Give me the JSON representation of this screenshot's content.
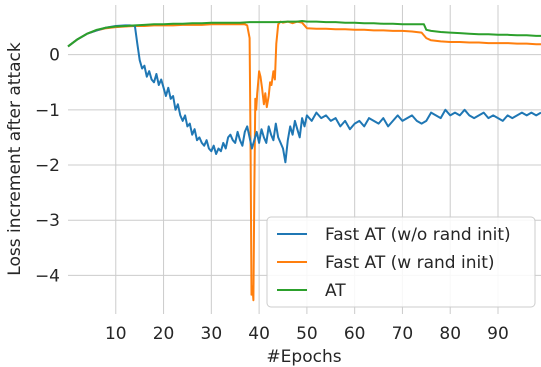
{
  "chart_data": {
    "type": "line",
    "xlabel": "#Epochs",
    "ylabel": "Loss increment after attack",
    "xlim": [
      0,
      99
    ],
    "ylim": [
      -4.7,
      0.9
    ],
    "xticks": [
      10,
      20,
      30,
      40,
      50,
      60,
      70,
      80,
      90
    ],
    "yticks": [
      0,
      -1,
      -2,
      -3,
      -4
    ],
    "grid": true,
    "legend_position": "bottom-right",
    "series": [
      {
        "name": "Fast AT (w/o rand init)",
        "color": "#1f77b4",
        "x": [
          0,
          2,
          4,
          6,
          8,
          10,
          12,
          13,
          14,
          14.5,
          15,
          15.5,
          16,
          16.5,
          17,
          17.5,
          18,
          18.5,
          19,
          19.5,
          20,
          20.5,
          21,
          21.5,
          22,
          22.5,
          23,
          23.5,
          24,
          24.5,
          25,
          25.5,
          26,
          26.5,
          27,
          27.5,
          28,
          28.5,
          29,
          29.5,
          30,
          30.5,
          31,
          31.5,
          32,
          32.5,
          33,
          33.5,
          34,
          34.5,
          35,
          35.5,
          36,
          36.5,
          37,
          37.5,
          38,
          38.5,
          39,
          39.5,
          40,
          40.5,
          41,
          41.5,
          42,
          42.5,
          43,
          43.5,
          44,
          44.5,
          45,
          45.5,
          46,
          46.5,
          47,
          47.5,
          48,
          48.5,
          49,
          49.5,
          50,
          51,
          52,
          53,
          54,
          55,
          56,
          57,
          58,
          59,
          60,
          61,
          62,
          63,
          64,
          65,
          66,
          67,
          68,
          69,
          70,
          71,
          72,
          73,
          74,
          75,
          76,
          77,
          78,
          79,
          80,
          81,
          82,
          83,
          84,
          85,
          86,
          87,
          88,
          89,
          90,
          91,
          92,
          93,
          94,
          95,
          96,
          97,
          98,
          99
        ],
        "values": [
          0.15,
          0.28,
          0.38,
          0.44,
          0.49,
          0.52,
          0.53,
          0.53,
          0.52,
          0.2,
          -0.1,
          -0.25,
          -0.2,
          -0.4,
          -0.3,
          -0.45,
          -0.5,
          -0.35,
          -0.55,
          -0.45,
          -0.6,
          -0.75,
          -0.6,
          -0.8,
          -0.75,
          -1.0,
          -0.9,
          -1.1,
          -1.2,
          -1.1,
          -1.3,
          -1.25,
          -1.45,
          -1.35,
          -1.55,
          -1.5,
          -1.6,
          -1.65,
          -1.55,
          -1.7,
          -1.75,
          -1.65,
          -1.8,
          -1.7,
          -1.75,
          -1.6,
          -1.7,
          -1.5,
          -1.45,
          -1.55,
          -1.6,
          -1.4,
          -1.55,
          -1.65,
          -1.4,
          -1.3,
          -1.5,
          -1.7,
          -1.55,
          -1.4,
          -1.6,
          -1.35,
          -1.5,
          -1.6,
          -1.3,
          -1.45,
          -1.55,
          -1.25,
          -1.5,
          -1.6,
          -1.7,
          -1.95,
          -1.55,
          -1.3,
          -1.45,
          -1.2,
          -1.35,
          -1.5,
          -1.15,
          -1.3,
          -1.1,
          -1.2,
          -1.05,
          -1.15,
          -1.1,
          -1.2,
          -1.15,
          -1.3,
          -1.2,
          -1.35,
          -1.25,
          -1.2,
          -1.3,
          -1.15,
          -1.2,
          -1.25,
          -1.15,
          -1.3,
          -1.2,
          -1.1,
          -1.2,
          -1.15,
          -1.1,
          -1.2,
          -1.25,
          -1.2,
          -1.05,
          -1.1,
          -1.15,
          -1.0,
          -1.1,
          -1.05,
          -1.1,
          -1.0,
          -1.1,
          -1.15,
          -1.1,
          -1.05,
          -1.15,
          -1.1,
          -1.15,
          -1.2,
          -1.1,
          -1.15,
          -1.1,
          -1.05,
          -1.1,
          -1.05,
          -1.1,
          -1.05
        ]
      },
      {
        "name": "Fast AT (w rand init)",
        "color": "#ff7f0e",
        "x": [
          0,
          2,
          4,
          6,
          8,
          10,
          12,
          14,
          16,
          18,
          20,
          22,
          24,
          26,
          28,
          30,
          32,
          34,
          36,
          37,
          37.5,
          38,
          38.2,
          38.4,
          38.6,
          38.8,
          39,
          39.2,
          39.4,
          39.6,
          39.8,
          40,
          40.3,
          40.6,
          41,
          41.3,
          41.6,
          42,
          42.3,
          42.6,
          43,
          43.3,
          43.6,
          44,
          44.5,
          45,
          46,
          47,
          48,
          49,
          50,
          52,
          54,
          56,
          58,
          60,
          62,
          64,
          66,
          68,
          70,
          72,
          74,
          75,
          76,
          78,
          80,
          82,
          84,
          86,
          88,
          90,
          92,
          94,
          96,
          98,
          99
        ],
        "values": [
          0.15,
          0.28,
          0.38,
          0.44,
          0.48,
          0.5,
          0.51,
          0.52,
          0.52,
          0.53,
          0.53,
          0.53,
          0.54,
          0.54,
          0.54,
          0.55,
          0.55,
          0.55,
          0.55,
          0.55,
          0.53,
          0.3,
          -1.5,
          -4.35,
          -4.2,
          -4.45,
          -2.5,
          -0.8,
          -1.0,
          -0.7,
          -0.5,
          -0.3,
          -0.4,
          -0.6,
          -0.9,
          -0.7,
          -0.95,
          -0.75,
          -0.5,
          -0.55,
          -0.3,
          -0.45,
          0.2,
          0.55,
          0.6,
          0.58,
          0.6,
          0.57,
          0.6,
          0.58,
          0.48,
          0.47,
          0.47,
          0.46,
          0.46,
          0.45,
          0.45,
          0.44,
          0.44,
          0.43,
          0.43,
          0.42,
          0.4,
          0.3,
          0.26,
          0.24,
          0.23,
          0.23,
          0.22,
          0.22,
          0.21,
          0.21,
          0.21,
          0.2,
          0.2,
          0.19,
          0.19
        ]
      },
      {
        "name": "AT",
        "color": "#2ca02c",
        "x": [
          0,
          2,
          4,
          6,
          8,
          10,
          12,
          14,
          16,
          18,
          20,
          22,
          24,
          26,
          28,
          30,
          32,
          34,
          36,
          38,
          40,
          42,
          44,
          46,
          48,
          49,
          50,
          52,
          54,
          56,
          58,
          60,
          62,
          64,
          66,
          68,
          70,
          72,
          74,
          74.5,
          75,
          76,
          78,
          80,
          82,
          84,
          86,
          88,
          90,
          92,
          94,
          96,
          98,
          99
        ],
        "values": [
          0.15,
          0.28,
          0.38,
          0.45,
          0.49,
          0.51,
          0.52,
          0.53,
          0.54,
          0.55,
          0.55,
          0.56,
          0.56,
          0.57,
          0.57,
          0.58,
          0.58,
          0.58,
          0.58,
          0.59,
          0.59,
          0.59,
          0.59,
          0.6,
          0.6,
          0.61,
          0.6,
          0.6,
          0.59,
          0.59,
          0.58,
          0.58,
          0.57,
          0.57,
          0.56,
          0.56,
          0.55,
          0.55,
          0.55,
          0.55,
          0.45,
          0.43,
          0.41,
          0.4,
          0.39,
          0.38,
          0.37,
          0.37,
          0.36,
          0.36,
          0.35,
          0.35,
          0.34,
          0.34
        ]
      }
    ]
  }
}
